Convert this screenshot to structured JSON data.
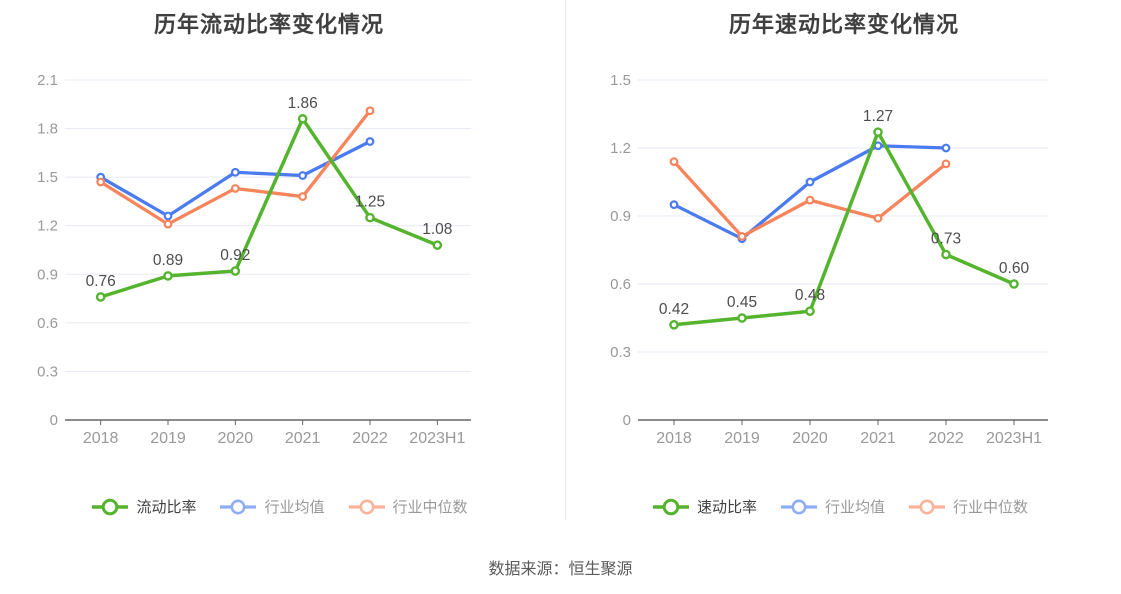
{
  "source_note": "数据来源：恒生聚源",
  "colors": {
    "green": "#55B42D",
    "blue": "#4B7BF0",
    "orange": "#F8845C",
    "grid": "#E5EAF5",
    "axis": "#666666",
    "tick_label": "#999999",
    "value_label": "#4D4D4D",
    "title": "#3F3F3F",
    "legend_active_label": "#404040",
    "legend_muted_label": "#999999",
    "divider": "#E8E8EB",
    "background": "#FFFFFF"
  },
  "chart_data": [
    {
      "type": "line",
      "title": "历年流动比率变化情况",
      "categories": [
        "2018",
        "2019",
        "2020",
        "2021",
        "2022",
        "2023H1"
      ],
      "xlabel": "",
      "ylabel": "",
      "ylim": [
        0,
        2.1
      ],
      "yticks": [
        "0",
        "0.3",
        "0.6",
        "0.9",
        "1.2",
        "1.5",
        "1.8",
        "2.1"
      ],
      "grid": true,
      "legend_position": "bottom",
      "series": [
        {
          "name": "流动比率",
          "color_key": "green",
          "values": [
            0.76,
            0.89,
            0.92,
            1.86,
            1.25,
            1.08
          ],
          "point_labels": [
            "0.76",
            "0.89",
            "0.92",
            "1.86",
            "1.25",
            "1.08"
          ]
        },
        {
          "name": "行业均值",
          "color_key": "blue",
          "values": [
            1.5,
            1.26,
            1.53,
            1.51,
            1.72,
            null
          ],
          "point_labels": null
        },
        {
          "name": "行业中位数",
          "color_key": "orange",
          "values": [
            1.47,
            1.21,
            1.43,
            1.38,
            1.91,
            null
          ],
          "point_labels": null
        }
      ]
    },
    {
      "type": "line",
      "title": "历年速动比率变化情况",
      "categories": [
        "2018",
        "2019",
        "2020",
        "2021",
        "2022",
        "2023H1"
      ],
      "xlabel": "",
      "ylabel": "",
      "ylim": [
        0,
        1.5
      ],
      "yticks": [
        "0",
        "0.3",
        "0.6",
        "0.9",
        "1.2",
        "1.5"
      ],
      "grid": true,
      "legend_position": "bottom",
      "series": [
        {
          "name": "速动比率",
          "color_key": "green",
          "values": [
            0.42,
            0.45,
            0.48,
            1.27,
            0.73,
            0.6
          ],
          "point_labels": [
            "0.42",
            "0.45",
            "0.48",
            "1.27",
            "0.73",
            "0.60"
          ]
        },
        {
          "name": "行业均值",
          "color_key": "blue",
          "values": [
            0.95,
            0.8,
            1.05,
            1.21,
            1.2,
            null
          ],
          "point_labels": null
        },
        {
          "name": "行业中位数",
          "color_key": "orange",
          "values": [
            1.14,
            0.81,
            0.97,
            0.89,
            1.13,
            null
          ],
          "point_labels": null
        }
      ]
    }
  ]
}
